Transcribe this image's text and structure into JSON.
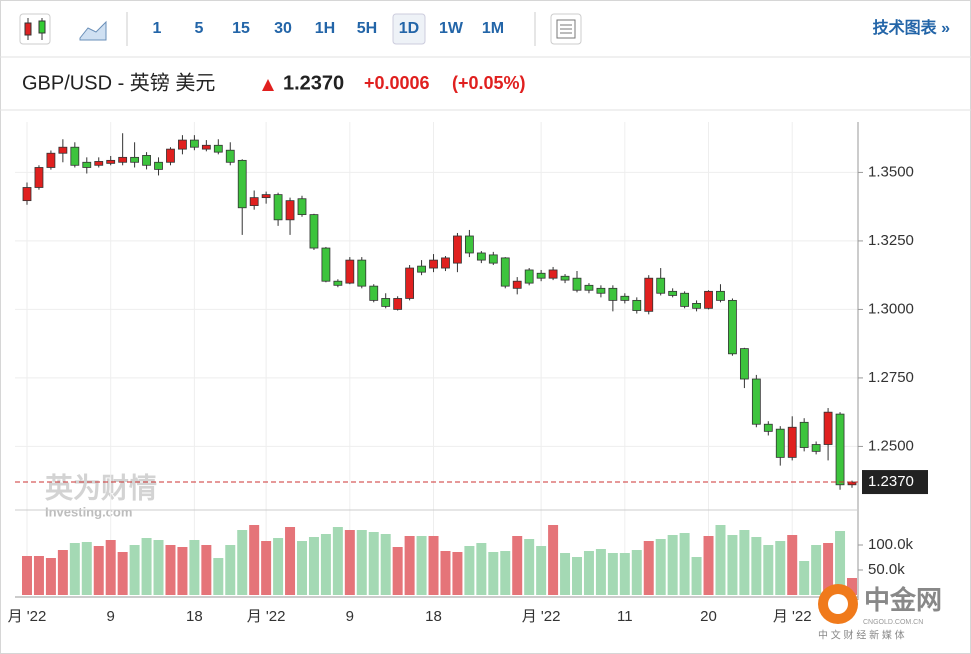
{
  "toolbar": {
    "intervals": [
      "1",
      "5",
      "15",
      "30",
      "1H",
      "5H",
      "1D",
      "1W",
      "1M"
    ],
    "selected": "1D",
    "link": "技术图表 »"
  },
  "quote": {
    "symbol": "GBP/USD - 英镑 美元",
    "price": "1.2370",
    "change": "+0.0006",
    "change_pct": "(+0.05%)"
  },
  "watermark": {
    "title": "英为财情",
    "subtitle": "Investing.com"
  },
  "logo": {
    "name": "中金网",
    "domain": "CNGOLD.COM.CN",
    "tagline": "中 文 财 经 新 媒 体"
  },
  "chart_data": {
    "type": "candlestick",
    "categories": [
      "月 '22",
      null,
      null,
      null,
      null,
      null,
      null,
      "9",
      null,
      null,
      null,
      null,
      null,
      null,
      "18",
      null,
      null,
      null,
      null,
      null,
      "月 '22",
      null,
      null,
      null,
      null,
      null,
      null,
      "9",
      null,
      null,
      null,
      null,
      null,
      null,
      "18",
      null,
      null,
      null,
      null,
      null,
      null,
      null,
      null,
      "月 '22",
      null,
      null,
      null,
      null,
      null,
      null,
      "11",
      null,
      null,
      null,
      null,
      null,
      null,
      "20",
      null,
      null,
      null,
      null,
      null,
      null,
      "月 '22",
      null,
      null,
      null,
      null,
      null
    ],
    "open": [
      1.3397,
      1.3445,
      1.3518,
      1.357,
      1.3592,
      1.3537,
      1.3526,
      1.3533,
      1.3537,
      1.3555,
      1.3562,
      1.3537,
      1.3537,
      1.3585,
      1.3618,
      1.3585,
      1.3599,
      1.3581,
      1.3544,
      1.3379,
      1.3408,
      1.3419,
      1.3327,
      1.3404,
      1.3346,
      1.3224,
      1.3103,
      1.3096,
      1.318,
      1.3085,
      1.304,
      1.3,
      1.304,
      1.3158,
      1.3151,
      1.3151,
      1.3169,
      1.3268,
      1.3206,
      1.3199,
      1.3188,
      1.3077,
      1.3144,
      1.3132,
      1.3114,
      1.3121,
      1.3114,
      1.3088,
      1.3077,
      1.3077,
      1.3048,
      1.3033,
      1.2993,
      1.3114,
      1.3066,
      1.3059,
      1.3022,
      1.3004,
      1.3066,
      1.3033,
      1.2857,
      1.2746,
      1.2581,
      1.2563,
      1.246,
      1.2588,
      1.2507,
      1.2507,
      1.2618,
      1.236
    ],
    "high": [
      1.3463,
      1.3526,
      1.358,
      1.3621,
      1.361,
      1.3555,
      1.3555,
      1.356,
      1.3643,
      1.361,
      1.3574,
      1.3555,
      1.3592,
      1.3636,
      1.3636,
      1.3618,
      1.3621,
      1.361,
      1.3548,
      1.3434,
      1.343,
      1.3426,
      1.3408,
      1.3415,
      1.3349,
      1.3228,
      1.311,
      1.3191,
      1.3191,
      1.3092,
      1.3059,
      1.3048,
      1.3162,
      1.318,
      1.3202,
      1.3195,
      1.3279,
      1.329,
      1.3213,
      1.321,
      1.3191,
      1.3118,
      1.3151,
      1.3144,
      1.3155,
      1.3129,
      1.314,
      1.3096,
      1.3088,
      1.3088,
      1.3059,
      1.3044,
      1.3125,
      1.3151,
      1.3077,
      1.3066,
      1.3033,
      1.307,
      1.3092,
      1.304,
      1.286,
      1.2761,
      1.2592,
      1.2574,
      1.261,
      1.2603,
      1.2518,
      1.264,
      1.2625,
      1.2375
    ],
    "low": [
      1.3382,
      1.3437,
      1.351,
      1.3537,
      1.3518,
      1.3496,
      1.3518,
      1.3526,
      1.3526,
      1.3518,
      1.3511,
      1.3489,
      1.3526,
      1.3566,
      1.3581,
      1.3577,
      1.3566,
      1.3526,
      1.3272,
      1.3364,
      1.3386,
      1.3305,
      1.3272,
      1.3338,
      1.3217,
      1.3099,
      1.3081,
      1.3092,
      1.3077,
      1.3026,
      1.3004,
      1.2996,
      1.3033,
      1.3125,
      1.3136,
      1.314,
      1.3136,
      1.3191,
      1.3169,
      1.3162,
      1.3077,
      1.3055,
      1.3088,
      1.3103,
      1.3107,
      1.3096,
      1.3062,
      1.3059,
      1.3044,
      1.2993,
      1.3022,
      1.2985,
      1.2982,
      1.3051,
      1.3044,
      1.3004,
      1.2993,
      1.3,
      1.3026,
      1.2831,
      1.2713,
      1.257,
      1.254,
      1.243,
      1.2449,
      1.2482,
      1.2471,
      1.2449,
      1.2342,
      1.2349
    ],
    "close": [
      1.3445,
      1.3518,
      1.357,
      1.3592,
      1.3526,
      1.3518,
      1.354,
      1.3544,
      1.3555,
      1.3537,
      1.3526,
      1.3511,
      1.3585,
      1.3618,
      1.3592,
      1.3599,
      1.3574,
      1.3537,
      1.3371,
      1.3408,
      1.3419,
      1.3327,
      1.3397,
      1.3346,
      1.3224,
      1.3103,
      1.3088,
      1.318,
      1.3085,
      1.3033,
      1.3011,
      1.304,
      1.3151,
      1.3136,
      1.318,
      1.3188,
      1.3268,
      1.3206,
      1.318,
      1.3169,
      1.3085,
      1.3103,
      1.3096,
      1.3114,
      1.3144,
      1.3107,
      1.307,
      1.307,
      1.3059,
      1.3033,
      1.3033,
      1.2996,
      1.3114,
      1.3059,
      1.3051,
      1.3011,
      1.3004,
      1.3066,
      1.3033,
      1.2838,
      1.2746,
      1.2581,
      1.2555,
      1.246,
      1.257,
      1.2496,
      1.2482,
      1.2625,
      1.236,
      1.237
    ],
    "volume": [
      78000,
      78000,
      74000,
      90000,
      104000,
      106000,
      98000,
      110000,
      86000,
      100000,
      114000,
      110000,
      100000,
      96000,
      110000,
      100000,
      74000,
      100000,
      130000,
      140000,
      108000,
      114000,
      136000,
      108000,
      116000,
      122000,
      136000,
      130000,
      130000,
      126000,
      122000,
      96000,
      118000,
      118000,
      118000,
      88000,
      86000,
      98000,
      104000,
      86000,
      88000,
      118000,
      112000,
      98000,
      140000,
      84000,
      76000,
      88000,
      92000,
      84000,
      84000,
      90000,
      108000,
      112000,
      120000,
      124000,
      76000,
      118000,
      140000,
      120000,
      130000,
      116000,
      100000,
      108000,
      120000,
      68000,
      100000,
      104000,
      128000,
      34000
    ],
    "up_color": "#e0201f",
    "down_color": "#3dc43d",
    "up_volume_color": "#e57479",
    "down_volume_color": "#a4d9b4",
    "ylim": [
      1.2268,
      1.3684
    ],
    "yticks": [
      {
        "value": 1.35,
        "label": "1.3500"
      },
      {
        "value": 1.325,
        "label": "1.3250"
      },
      {
        "value": 1.3,
        "label": "1.3000"
      },
      {
        "value": 1.275,
        "label": "1.2750"
      },
      {
        "value": 1.25,
        "label": "1.2500"
      }
    ],
    "vlim": [
      0,
      170000
    ],
    "vticks": [
      {
        "value": 100000,
        "label": "100.0k"
      },
      {
        "value": 50000,
        "label": "50.0k"
      }
    ],
    "last_price": {
      "value": 1.237,
      "label": "1.2370"
    },
    "grid": true
  }
}
